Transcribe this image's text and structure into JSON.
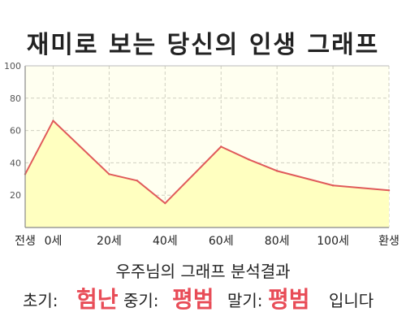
{
  "title": "재미로 보는 당신의 인생 그래프",
  "summary": {
    "heading": "우주님의 그래프 분석결과",
    "early_label": "초기:",
    "early_value": "험난",
    "middle_label": "중기:",
    "middle_value": "평범",
    "late_label": "말기:",
    "late_value": "평범",
    "suffix": "입니다"
  },
  "colors": {
    "line": "#e05a5a",
    "fill": "#ffffc0",
    "plot_bg": "#fffff0",
    "highlight": "#e84c57"
  },
  "chart_data": {
    "type": "area",
    "x": [
      -10,
      0,
      20,
      30,
      40,
      60,
      70,
      80,
      100,
      120
    ],
    "x_ticks": [
      {
        "x": -10,
        "label": "전생"
      },
      {
        "x": 0,
        "label": "0세"
      },
      {
        "x": 20,
        "label": "20세"
      },
      {
        "x": 40,
        "label": "40세"
      },
      {
        "x": 60,
        "label": "60세"
      },
      {
        "x": 80,
        "label": "80세"
      },
      {
        "x": 100,
        "label": "100세"
      },
      {
        "x": 120,
        "label": "환생"
      }
    ],
    "values": [
      33,
      66,
      33,
      29,
      15,
      50,
      42,
      35,
      26,
      23
    ],
    "ylim": [
      0,
      100
    ],
    "y_ticks": [
      20,
      40,
      60,
      80,
      100
    ],
    "xlim": [
      -10,
      120
    ],
    "grid": true
  }
}
